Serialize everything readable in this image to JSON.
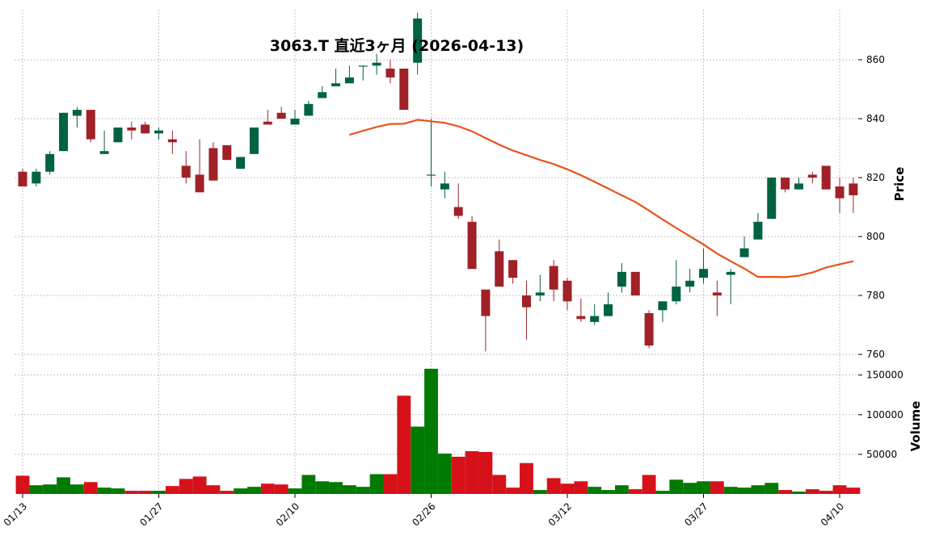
{
  "chart_data": {
    "type": "candlestick",
    "title": "3063.T  直近3ヶ月 (2026-04-13)",
    "ylabel": "Price",
    "volume_label": "Volume",
    "ylim": [
      757,
      877
    ],
    "volume_ylim": [
      0,
      165000
    ],
    "price_ticks": [
      760,
      780,
      800,
      820,
      840,
      860
    ],
    "volume_ticks": [
      "50000",
      "100000",
      "150000"
    ],
    "volume_tick_values": [
      50000,
      100000,
      150000
    ],
    "x_ticks": [
      {
        "i": 0,
        "label": "01/13"
      },
      {
        "i": 10,
        "label": "01/27"
      },
      {
        "i": 20,
        "label": "02/10"
      },
      {
        "i": 30,
        "label": "02/26"
      },
      {
        "i": 40,
        "label": "03/12"
      },
      {
        "i": 50,
        "label": "03/27"
      },
      {
        "i": 60,
        "label": "04/10"
      }
    ],
    "colors": {
      "up": "#006340",
      "down": "#a02128",
      "vol_up": "#007a00",
      "vol_down": "#d7111a",
      "ma": "#e8521a",
      "grid": "#a0a0a0"
    },
    "candles": [
      [
        822,
        823,
        817,
        817
      ],
      [
        818,
        823,
        817,
        822
      ],
      [
        822,
        829,
        821,
        828
      ],
      [
        829,
        842,
        829,
        842
      ],
      [
        841,
        844,
        837,
        843
      ],
      [
        843,
        843,
        832,
        833
      ],
      [
        828,
        836,
        828,
        829
      ],
      [
        832,
        837,
        832,
        837
      ],
      [
        837,
        839,
        833,
        836
      ],
      [
        838,
        839,
        835,
        835
      ],
      [
        835,
        837,
        833,
        836
      ],
      [
        833,
        836,
        828,
        832
      ],
      [
        824,
        829,
        818,
        820
      ],
      [
        821,
        833,
        815,
        815
      ],
      [
        830,
        832,
        819,
        819
      ],
      [
        831,
        831,
        826,
        826
      ],
      [
        823,
        827,
        823,
        827
      ],
      [
        828,
        837,
        828,
        837
      ],
      [
        839,
        843,
        838,
        838
      ],
      [
        842,
        844,
        840,
        840
      ],
      [
        838,
        843,
        838,
        840
      ],
      [
        841,
        846,
        841,
        845
      ],
      [
        847,
        851,
        847,
        849
      ],
      [
        851,
        857,
        851,
        852
      ],
      [
        852,
        858,
        852,
        854
      ],
      [
        858,
        858,
        853,
        858
      ],
      [
        858,
        862,
        855,
        859
      ],
      [
        857,
        860,
        852,
        854
      ],
      [
        857,
        857,
        843,
        843
      ],
      [
        859,
        876,
        855,
        874
      ],
      [
        821,
        840,
        817,
        821
      ],
      [
        816,
        822,
        813,
        818
      ],
      [
        810,
        818,
        806,
        807
      ],
      [
        805,
        807,
        789,
        789
      ],
      [
        782,
        782,
        761,
        773
      ],
      [
        795,
        799,
        783,
        783
      ],
      [
        792,
        792,
        784,
        786
      ],
      [
        780,
        785,
        765,
        776
      ],
      [
        780,
        787,
        778,
        781
      ],
      [
        790,
        792,
        778,
        782
      ],
      [
        785,
        786,
        775,
        778
      ],
      [
        773,
        779,
        771,
        772
      ],
      [
        771,
        777,
        770,
        773
      ],
      [
        773,
        781,
        773,
        777
      ],
      [
        783,
        791,
        781,
        788
      ],
      [
        788,
        788,
        780,
        780
      ],
      [
        774,
        775,
        762,
        763
      ],
      [
        775,
        778,
        771,
        778
      ],
      [
        778,
        792,
        777,
        783
      ],
      [
        783,
        789,
        781,
        785
      ],
      [
        786,
        796,
        784,
        789
      ],
      [
        781,
        785,
        773,
        780
      ],
      [
        787,
        789,
        777,
        788
      ],
      [
        793,
        800,
        793,
        796
      ],
      [
        799,
        808,
        799,
        805
      ],
      [
        806,
        820,
        806,
        820
      ],
      [
        820,
        820,
        815,
        816
      ],
      [
        816,
        820,
        816,
        818
      ],
      [
        821,
        822,
        818,
        820
      ],
      [
        824,
        824,
        816,
        816
      ],
      [
        817,
        820,
        808,
        813
      ],
      [
        818,
        820,
        808,
        814
      ]
    ],
    "volumes": [
      23000,
      11000,
      12000,
      21000,
      12000,
      15000,
      8000,
      7000,
      4000,
      4000,
      4000,
      10000,
      19000,
      22000,
      11000,
      4000,
      7000,
      9000,
      13000,
      12000,
      7000,
      24000,
      16000,
      15000,
      11000,
      9000,
      25000,
      25000,
      124000,
      85000,
      158000,
      51000,
      47000,
      54000,
      53000,
      24000,
      8000,
      39000,
      5000,
      20000,
      13000,
      16000,
      9000,
      5000,
      11000,
      6000,
      24000,
      4000,
      18000,
      14000,
      16000,
      16000,
      9000,
      8000,
      11000,
      14000,
      5000,
      3000,
      6000,
      4000,
      11000,
      8000
    ],
    "ma": [
      [
        24,
        834.5
      ],
      [
        25,
        835.9
      ],
      [
        26,
        837.2
      ],
      [
        27,
        838.2
      ],
      [
        28,
        838.3
      ],
      [
        29,
        839.6
      ],
      [
        30,
        839.1
      ],
      [
        31,
        838.6
      ],
      [
        32,
        837.4
      ],
      [
        33,
        835.7
      ],
      [
        34,
        833.4
      ],
      [
        35,
        831.2
      ],
      [
        36,
        829.2
      ],
      [
        37,
        827.6
      ],
      [
        38,
        826.0
      ],
      [
        39,
        824.6
      ],
      [
        40,
        822.8
      ],
      [
        41,
        820.8
      ],
      [
        42,
        818.6
      ],
      [
        43,
        816.3
      ],
      [
        44,
        814.0
      ],
      [
        45,
        811.7
      ],
      [
        46,
        808.8
      ],
      [
        47,
        805.8
      ],
      [
        48,
        802.9
      ],
      [
        49,
        800.1
      ],
      [
        50,
        797.3
      ],
      [
        51,
        794.2
      ],
      [
        52,
        791.6
      ],
      [
        53,
        789.1
      ],
      [
        54,
        786.3
      ],
      [
        55,
        786.3
      ],
      [
        56,
        786.2
      ],
      [
        57,
        786.7
      ],
      [
        58,
        787.8
      ],
      [
        59,
        789.5
      ],
      [
        60,
        790.6
      ],
      [
        61,
        791.6
      ]
    ]
  }
}
